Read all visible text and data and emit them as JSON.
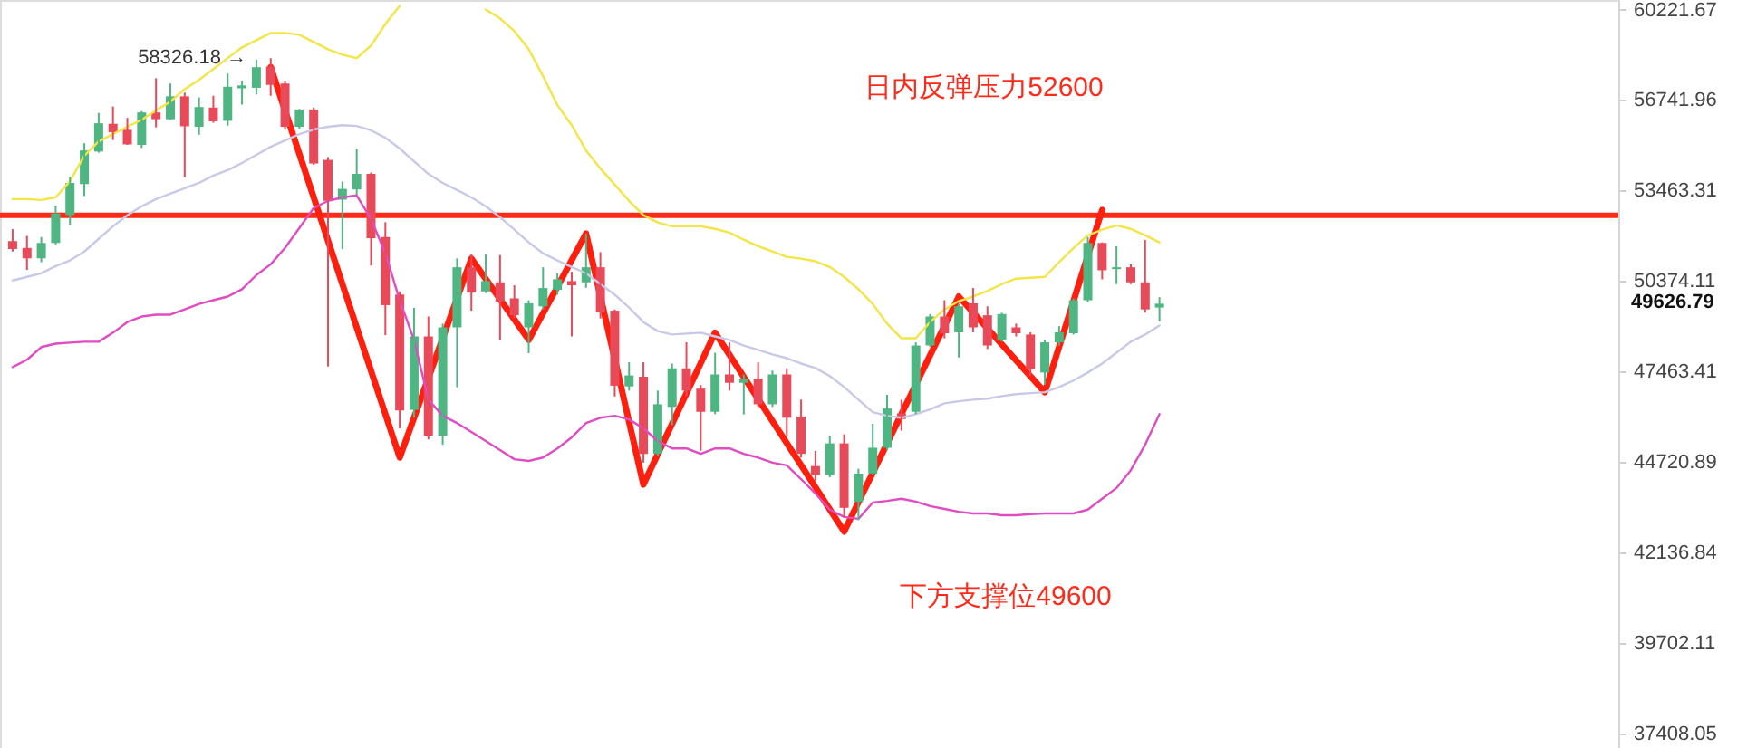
{
  "chart_data": {
    "type": "candlestick",
    "tick_labels": "y",
    "log": true,
    "ylim": [
      37050,
      60600
    ],
    "yticks": [
      60221.67,
      56741.96,
      53463.31,
      50374.11,
      47463.41,
      44720.89,
      42136.84,
      39702.11,
      37408.05
    ],
    "categories": [
      null,
      null,
      null,
      null,
      null,
      null,
      null,
      null,
      null,
      null,
      null,
      null,
      null,
      null,
      null,
      null,
      null,
      null,
      null,
      null,
      null,
      null,
      null,
      null,
      null,
      null,
      null,
      null,
      null,
      null,
      null,
      null,
      null,
      null,
      null,
      null,
      null,
      null,
      null,
      null,
      null,
      null,
      null,
      null,
      null,
      null,
      null,
      null,
      null,
      null,
      null,
      null,
      null,
      null,
      null,
      null,
      null,
      null,
      null,
      null,
      null,
      null,
      null,
      null,
      null,
      null,
      null,
      null,
      null,
      null,
      null,
      null,
      null,
      null,
      null,
      null,
      null,
      null,
      null,
      null,
      null,
      null,
      null,
      null,
      null,
      null,
      null,
      null,
      null,
      null,
      null,
      null,
      null,
      null,
      null,
      null,
      null,
      null,
      null,
      null,
      null,
      null,
      null,
      null,
      null,
      null,
      null,
      null,
      null,
      null,
      null,
      null
    ],
    "ohlc": [
      [
        51710,
        52120,
        51360,
        51440
      ],
      [
        51480,
        51890,
        50740,
        51130
      ],
      [
        51130,
        51850,
        51000,
        51650
      ],
      [
        51650,
        52930,
        51600,
        52660
      ],
      [
        52610,
        53940,
        52270,
        53730
      ],
      [
        53690,
        55150,
        53270,
        54890
      ],
      [
        54850,
        56260,
        54810,
        55880
      ],
      [
        55860,
        56500,
        55270,
        55550
      ],
      [
        55640,
        56080,
        55090,
        55110
      ],
      [
        55090,
        56330,
        54980,
        56280
      ],
      [
        56280,
        57560,
        55730,
        56030
      ],
      [
        56030,
        57360,
        56010,
        56880
      ],
      [
        56880,
        57020,
        53920,
        55770
      ],
      [
        55750,
        56840,
        55460,
        56480
      ],
      [
        56460,
        56900,
        55900,
        55950
      ],
      [
        55970,
        57740,
        55790,
        57240
      ],
      [
        57180,
        57470,
        56570,
        57290
      ],
      [
        57200,
        58270,
        56950,
        57980
      ],
      [
        58000,
        58326.18,
        56900,
        57310
      ],
      [
        57360,
        57470,
        55640,
        55750
      ],
      [
        55750,
        56410,
        55680,
        56390
      ],
      [
        56390,
        56460,
        54370,
        54420
      ],
      [
        54550,
        54650,
        47620,
        53100
      ],
      [
        53140,
        53780,
        51440,
        53520
      ],
      [
        53500,
        54960,
        53310,
        54050
      ],
      [
        54050,
        54100,
        50890,
        51810
      ],
      [
        51850,
        52360,
        48610,
        49580
      ],
      [
        49930,
        50030,
        45720,
        46260
      ],
      [
        46280,
        49490,
        46040,
        48570
      ],
      [
        48570,
        49210,
        45390,
        45500
      ],
      [
        45500,
        48980,
        45230,
        48860
      ],
      [
        48860,
        51130,
        46970,
        50830
      ],
      [
        50830,
        51280,
        49400,
        49990
      ],
      [
        50030,
        51280,
        49980,
        50370
      ],
      [
        50330,
        51240,
        48440,
        49700
      ],
      [
        49800,
        50230,
        49150,
        49250
      ],
      [
        48860,
        49740,
        48040,
        49640
      ],
      [
        49540,
        50830,
        49440,
        50140
      ],
      [
        50080,
        50630,
        49920,
        50430
      ],
      [
        50370,
        50680,
        48570,
        50230
      ],
      [
        50330,
        51960,
        50150,
        50830
      ],
      [
        50830,
        51340,
        49150,
        49340
      ],
      [
        49400,
        49440,
        46690,
        47020
      ],
      [
        47000,
        47750,
        46870,
        47340
      ],
      [
        47300,
        47750,
        44700,
        44960
      ],
      [
        44960,
        46870,
        44910,
        46450
      ],
      [
        46370,
        47710,
        45820,
        47560
      ],
      [
        47560,
        48380,
        46700,
        46870
      ],
      [
        46930,
        47040,
        45050,
        46220
      ],
      [
        46220,
        48050,
        46150,
        47370
      ],
      [
        47370,
        48380,
        46870,
        47110
      ],
      [
        47110,
        47370,
        46140,
        47240
      ],
      [
        47240,
        47750,
        46370,
        46450
      ],
      [
        46450,
        47490,
        46370,
        47370
      ],
      [
        47370,
        47560,
        45500,
        46040
      ],
      [
        46080,
        46590,
        44850,
        44960
      ],
      [
        44600,
        45050,
        44170,
        44340
      ],
      [
        44340,
        45500,
        44270,
        45270
      ],
      [
        45270,
        45540,
        43130,
        43390
      ],
      [
        43560,
        44520,
        43040,
        44380
      ],
      [
        44380,
        45860,
        44330,
        45140
      ],
      [
        45140,
        46740,
        45070,
        46320
      ],
      [
        46170,
        46590,
        45650,
        46000
      ],
      [
        46220,
        48380,
        46150,
        48280
      ],
      [
        48280,
        49290,
        48230,
        49210
      ],
      [
        49210,
        49740,
        48510,
        48670
      ],
      [
        48700,
        49620,
        47900,
        49540
      ],
      [
        49640,
        50140,
        48700,
        48860
      ],
      [
        49250,
        49540,
        48170,
        48280
      ],
      [
        48470,
        49330,
        48400,
        49290
      ],
      [
        48860,
        48980,
        48570,
        48670
      ],
      [
        48630,
        48700,
        47330,
        47530
      ],
      [
        47430,
        48460,
        47050,
        48380
      ],
      [
        48380,
        48900,
        48280,
        48700
      ],
      [
        48670,
        49800,
        48630,
        49740
      ],
      [
        49740,
        51850,
        49680,
        51650
      ],
      [
        51650,
        51670,
        50430,
        50730
      ],
      [
        50770,
        51540,
        50270,
        50830
      ],
      [
        50830,
        50930,
        50270,
        50330
      ],
      [
        50330,
        51750,
        49340,
        49440
      ],
      [
        49500,
        49840,
        49050,
        49626.79
      ],
      null,
      null,
      null,
      null,
      null,
      null,
      null,
      null,
      null,
      null,
      null,
      null,
      null,
      null,
      null,
      null,
      null,
      null,
      null,
      null,
      null,
      null,
      null,
      null,
      null,
      null,
      null,
      null,
      null,
      null,
      null
    ],
    "series": [
      {
        "type": "line",
        "color": "#f2e646",
        "values": [
          53160,
          53160,
          53130,
          53220,
          53790,
          54700,
          55220,
          55480,
          55750,
          56010,
          56350,
          56680,
          57150,
          57500,
          57910,
          58330,
          58740,
          59020,
          59300,
          59300,
          59230,
          58950,
          58670,
          58460,
          58330,
          58810,
          59650,
          60370,
          null,
          null,
          null,
          null,
          null,
          60220,
          59870,
          59370,
          58670,
          57640,
          56550,
          55810,
          54890,
          54240,
          53670,
          53100,
          52600,
          52350,
          52220,
          52220,
          52220,
          52130,
          52000,
          51760,
          51540,
          51360,
          51180,
          51120,
          51030,
          50840,
          50510,
          50100,
          49620,
          48980,
          48510,
          48510,
          49030,
          49440,
          49710,
          49860,
          50040,
          50270,
          50450,
          50480,
          50510,
          51000,
          51480,
          51910,
          52100,
          52250,
          52130,
          51910,
          51670,
          null,
          null,
          null,
          null,
          null,
          null,
          null,
          null,
          null,
          null,
          null,
          null,
          null,
          null,
          null,
          null,
          null,
          null,
          null,
          null,
          null,
          null,
          null,
          null,
          null,
          null,
          null,
          null,
          null,
          null,
          null
        ]
      },
      {
        "type": "line",
        "color": "#c9c9e6",
        "values": [
          50390,
          50510,
          50630,
          50870,
          51060,
          51360,
          51790,
          52220,
          52600,
          52910,
          53160,
          53350,
          53540,
          53730,
          53990,
          54180,
          54440,
          54730,
          55020,
          55250,
          55480,
          55650,
          55750,
          55810,
          55780,
          55620,
          55350,
          54960,
          54500,
          54050,
          53730,
          53480,
          53220,
          52910,
          52530,
          52100,
          51670,
          51300,
          51060,
          50840,
          50630,
          50270,
          49920,
          49500,
          49030,
          48740,
          48630,
          48660,
          48690,
          48570,
          48460,
          48280,
          48140,
          48000,
          47880,
          47710,
          47570,
          47320,
          46980,
          46590,
          46210,
          46100,
          46040,
          46150,
          46290,
          46480,
          46540,
          46590,
          46620,
          46700,
          46760,
          46790,
          46820,
          46980,
          47180,
          47430,
          47710,
          48050,
          48400,
          48630,
          48920,
          null,
          null,
          null,
          null,
          null,
          null,
          null,
          null,
          null,
          null,
          null,
          null,
          null,
          null,
          null,
          null,
          null,
          null,
          null,
          null,
          null,
          null,
          null,
          null,
          null,
          null,
          null,
          null,
          null,
          null,
          null
        ]
      },
      {
        "type": "line",
        "color": "#e04cc2",
        "values": [
          47600,
          47830,
          48230,
          48340,
          48370,
          48400,
          48400,
          48690,
          49030,
          49210,
          49270,
          49270,
          49440,
          49620,
          49740,
          49860,
          50100,
          50570,
          50930,
          51480,
          52160,
          52850,
          53100,
          53220,
          53290,
          52470,
          51300,
          49740,
          48460,
          46590,
          46100,
          45880,
          45610,
          45340,
          45070,
          44800,
          44750,
          44850,
          45120,
          45450,
          45880,
          46040,
          46100,
          45990,
          45720,
          45340,
          45120,
          45120,
          44960,
          45120,
          45120,
          44960,
          44850,
          44700,
          44620,
          44220,
          43800,
          43340,
          43130,
          43080,
          43540,
          43590,
          43650,
          43570,
          43440,
          43360,
          43280,
          43230,
          43230,
          43180,
          43180,
          43210,
          43230,
          43230,
          43230,
          43340,
          43650,
          43960,
          44480,
          45230,
          46150,
          null,
          null,
          null,
          null,
          null,
          null,
          null,
          null,
          null,
          null,
          null,
          null,
          null,
          null,
          null,
          null,
          null,
          null,
          null,
          null,
          null,
          null,
          null,
          null,
          null,
          null,
          null,
          null,
          null,
          null,
          null
        ]
      },
      {
        "type": "line",
        "color": "#ff1f0f",
        "values": [
          null,
          null,
          null,
          null,
          null,
          null,
          null,
          null,
          null,
          null,
          null,
          null,
          null,
          null,
          null,
          null,
          null,
          null,
          57980,
          null,
          null,
          null,
          null,
          null,
          null,
          null,
          null,
          44850,
          null,
          null,
          null,
          null,
          51120,
          null,
          null,
          null,
          48460,
          null,
          null,
          null,
          51970,
          null,
          null,
          null,
          44060,
          null,
          null,
          null,
          null,
          48690,
          null,
          null,
          null,
          null,
          null,
          null,
          null,
          null,
          42720,
          null,
          null,
          null,
          null,
          null,
          null,
          null,
          49860,
          null,
          null,
          null,
          null,
          null,
          46820,
          null,
          null,
          null,
          52780,
          null,
          null,
          null,
          null,
          null,
          null,
          null,
          null,
          null,
          null,
          null,
          null,
          null,
          null,
          null,
          null,
          null,
          null,
          null,
          null,
          null,
          null,
          null,
          null,
          null,
          null,
          null,
          null,
          null,
          null,
          null,
          null,
          null,
          null,
          null
        ]
      }
    ],
    "ref_lines": [
      {
        "axis": "y",
        "value": 52600,
        "color": "#ff2a1a"
      }
    ],
    "annotations": [
      "日内反弹压力52600",
      "下方支撑位49600",
      "58326.18 →",
      "49626.79"
    ]
  }
}
